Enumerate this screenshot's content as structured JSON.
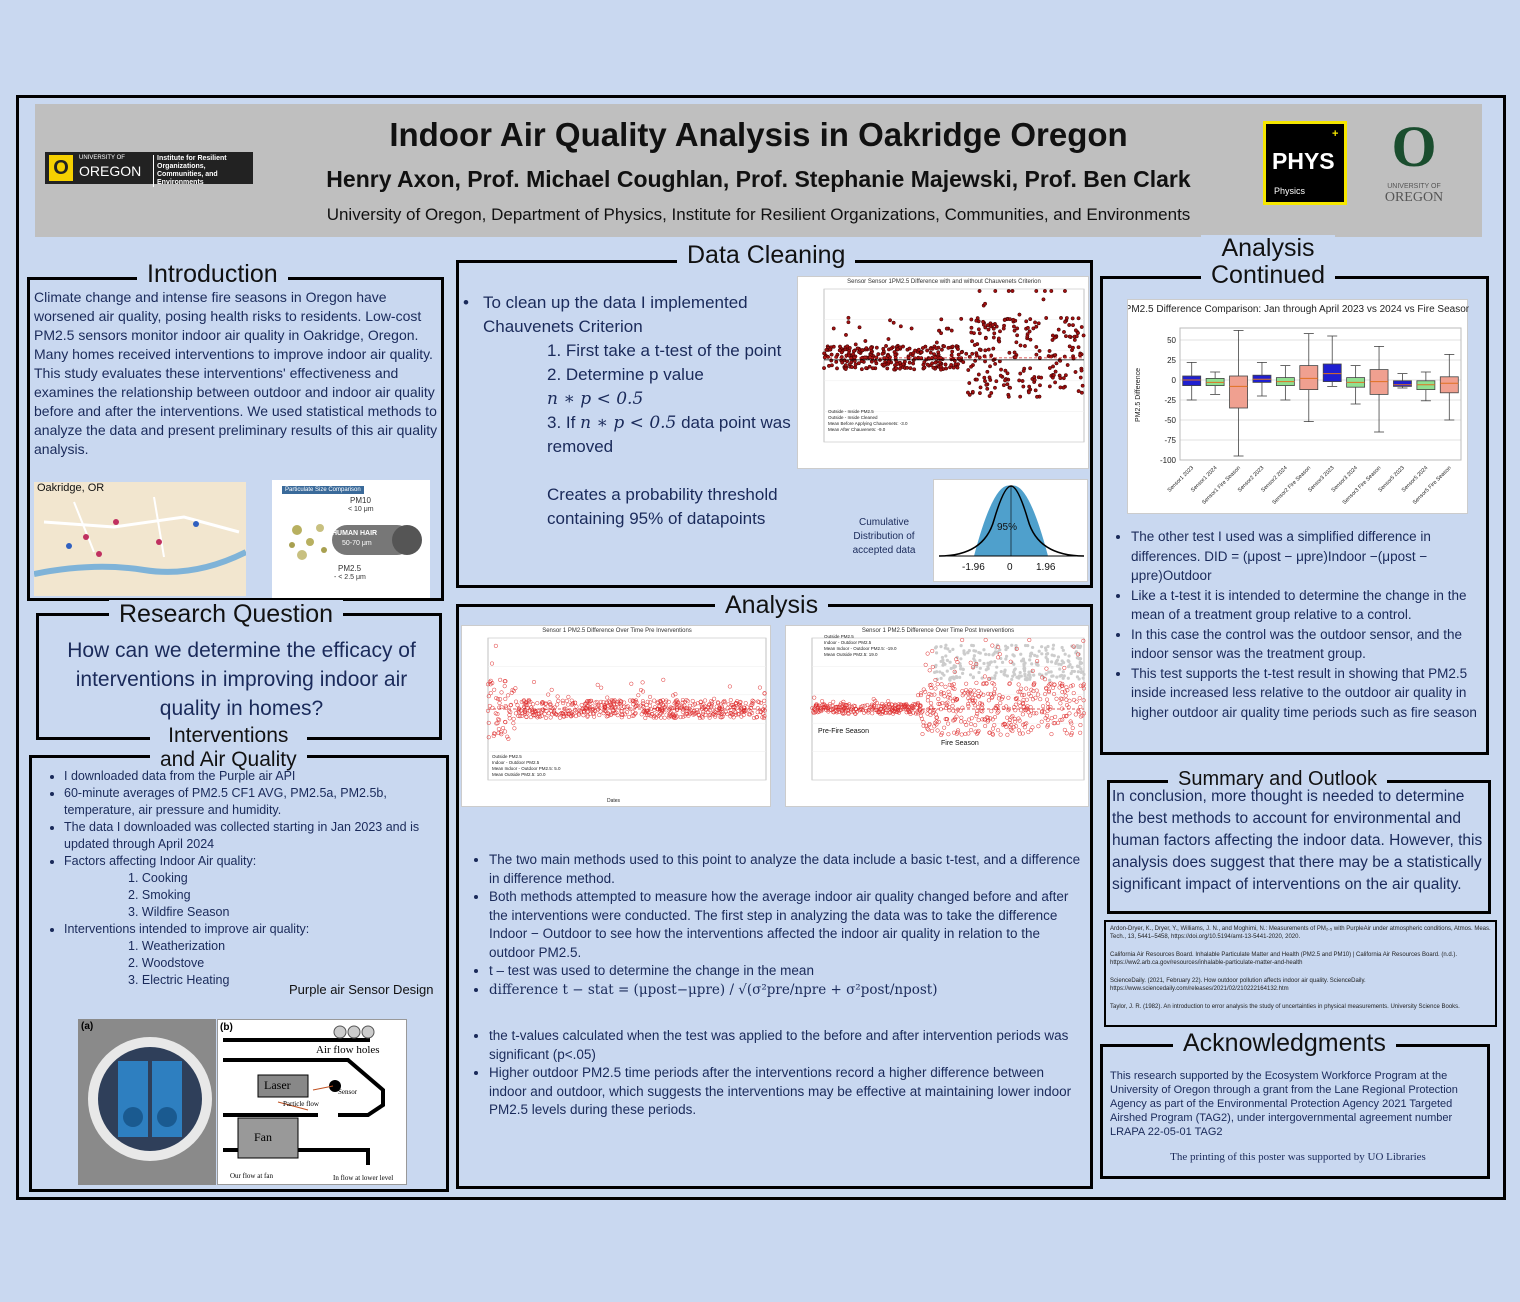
{
  "header": {
    "title": "Indoor Air Quality Analysis in Oakridge Oregon",
    "authors": "Henry Axon, Prof. Michael Coughlan, Prof. Stephanie Majewski,  Prof. Ben Clark",
    "affiliation": "University of Oregon, Department of  Physics,  Institute for Resilient Organizations, Communities, and Environments",
    "uo_logo_left": "OREGON",
    "uo_logo_univ": "UNIVERSITY OF",
    "uo_logo_right": "Institute for Resilient Organizations, Communities, and Environments",
    "phys_label": "PHYS",
    "phys_sub": "Physics",
    "oregon_letter": "O",
    "oregon_univ": "UNIVERSITY OF",
    "oregon_name": "OREGON"
  },
  "introduction": {
    "heading": "Introduction",
    "text": "Climate change and intense fire seasons in Oregon have worsened air quality, posing health risks to residents. Low-cost PM2.5 sensors monitor indoor air quality in Oakridge, Oregon. Many homes received interventions to improve indoor air quality. This study evaluates these interventions' effectiveness and examines the relationship between outdoor and indoor air quality before and after the interventions. We used statistical methods to analyze the data and present preliminary results of this air quality analysis.",
    "map_label": "Oakridge, OR",
    "particle_title": "Particulate Size Comparison",
    "pm10": "PM10",
    "pm10_size": "< 10 μm",
    "hair": "HUMAN HAIR",
    "hair_size": "50-70 μm",
    "pm25": "PM2.5",
    "pm25_size": "- < 2.5 μm"
  },
  "research": {
    "heading": "Research Question",
    "text": "How can we determine the efficacy of interventions in improving indoor air quality in homes?"
  },
  "interventions": {
    "heading1": "Interventions",
    "heading2": "and Air Quality",
    "b1": "I downloaded data from the Purple air API",
    "b2": "60-minute averages of PM2.5 CF1 AVG, PM2.5a, PM2.5b, temperature, air pressure and humidity.",
    "b3": "The data I downloaded was collected starting in Jan 2023 and is updated through April 2024",
    "b4": "Factors affecting Indoor Air quality:",
    "f": [
      "1.     Cooking",
      "2.     Smoking",
      "3.     Wildfire Season"
    ],
    "b5": "Interventions intended to improve air quality:",
    "i": [
      "1.     Weatherization",
      "2.     Woodstove",
      "3.     Electric Heating"
    ],
    "design_label": "Purple air Sensor Design",
    "fig_a": "(a)",
    "fig_b": "(b)",
    "laser": "Laser",
    "fan": "Fan",
    "airflow": "Air flow holes",
    "sensor": "Sensor",
    "particle_flow": "Particle flow",
    "out_fan": "Our flow at fan",
    "in_flow": "In flow at lower level"
  },
  "cleaning": {
    "heading": "Data Cleaning",
    "b1": "To clean up the data I implemented Chauvenets Criterion",
    "s1": "1.   First take a t-test of the point",
    "s2": "2.   Determine p value",
    "m1": "n ∗ p < 0.5",
    "s3a": "3.   If ",
    "s3m": "n ∗ p < 0.5",
    "s3b": " data point was removed",
    "threshold": "Creates a probability threshold containing 95% of datapoints",
    "cum_label": "Cumulative Distribution of accepted data",
    "chart_title": "Sensor Sensor 1PM2.5 Difference with and without Chauvenets Criterion",
    "legend": [
      "Outside - Inside PM2.5",
      "Outside - Inside Cleaned",
      "Mean Before Applying Chauvenets: -3.0",
      "Mean After Chauvenets: -9.0"
    ],
    "normal_pct": "95%",
    "normal_ticks": [
      "-1.96",
      "0",
      "1.96"
    ]
  },
  "analysis": {
    "heading": "Analysis",
    "chart1_title": "Sensor 1 PM2.5 Difference Over Time Pre Inverventions",
    "chart2_title": "Sensor 1 PM2.5 Difference Over Time Post Inverventions",
    "pre_fire": "Pre-Fire Season",
    "fire": "Fire Season",
    "xlabel": "Dates",
    "legend1": [
      "Outside PM2.5",
      "Indoor - Outdoor PM2.5",
      "Mean Indoor - Outdoor PM2.5: 5.0",
      "Mean Outside PM2.5: 10.0"
    ],
    "legend2": [
      "Outside PM2.5",
      "Indoor - Outdoor PM2.5",
      "Mean Indoor - Outdoor PM2.5: -19.0",
      "Mean Outside PM2.5: 19.0"
    ],
    "b1": "The two main methods used to this point to analyze the data include a basic t-test, and a difference in difference method.",
    "b2": "Both methods attempted to measure how the average indoor air quality changed before and after the interventions were conducted. The first step in analyzing the data was to take the difference  Indoor − Outdoor to see how the  interventions affected the indoor air quality in relation to the outdoor PM2.5.",
    "b3": "t – test was used to determine the change in the mean",
    "b4": "difference t − stat = (μpost−μpre) / √(σ²pre/npre + σ²post/npost)",
    "b5": "the t-values calculated when the test was applied to the before and after intervention periods was significant (p<.05)",
    "b6": "Higher outdoor PM2.5 time periods after the interventions record a higher difference between indoor and outdoor, which suggests the interventions may be effective at maintaining lower indoor PM2.5 levels during these periods."
  },
  "continued": {
    "heading1": "Analysis",
    "heading2": "Continued",
    "b1": "The other test I used was  a simplified difference in differences. DID = (μpost − μpre)Indoor −(μpost − μpre)Outdoor",
    "b2": "Like a t-test it is intended to determine the change in the mean of a treatment group relative to a control.",
    "b3": "In this case the control was the outdoor sensor, and the indoor sensor was the treatment group.",
    "b4": "This test supports the t-test result in showing that PM2.5 inside increased less relative to the outdoor air quality in higher outdoor air quality time periods such as fire season"
  },
  "summary": {
    "heading": "Summary and Outlook",
    "text": "In conclusion, more thought is needed to determine the best methods to account for environmental and human factors affecting the indoor data. However, this analysis does suggest that there may be a statistically significant impact of interventions on the air quality."
  },
  "references": {
    "r1": "Ardon-Dryer, K., Dryer, Y., Williams, J. N., and Moghimi, N.: Measurements of PM₂.₅ with PurpleAir under atmospheric conditions, Atmos. Meas. Tech., 13, 5441–5458, https://doi.org/10.5194/amt-13-5441-2020, 2020.",
    "r2": "California Air Resources Board. Inhalable Particulate Matter and Health (PM2.5 and PM10) | California Air Resources Board. (n.d.). https://ww2.arb.ca.gov/resources/inhalable-particulate-matter-and-health",
    "r3": "ScienceDaily. (2021, February 22). How outdoor pollution affects indoor air quality. ScienceDaily. https://www.sciencedaily.com/releases/2021/02/210222164132.htm",
    "r4": "Taylor, J. R. (1982). An introduction to error analysis the study of uncertainties in physical measurements. University Science Books."
  },
  "acknowledgments": {
    "heading": "Acknowledgments",
    "text": "This research supported by the Ecosystem Workforce Program at the University of Oregon through a grant from the Lane Regional Protection Agency as part of the Environmental Protection Agency 2021 Targeted Airshed Program (TAG2), under intergovernmental agreement number LRAPA 22-05-01 TAG2",
    "printing": "The printing of this poster was supported by UO Libraries"
  },
  "chart_data": [
    {
      "type": "box",
      "title": "PM2.5 Difference Comparison: Jan through April 2023 vs 2024 vs Fire Season",
      "ylabel": "PM2.5 Difference",
      "ylim": [
        -100,
        65
      ],
      "yticks": [
        50,
        25,
        0,
        -25,
        -50,
        -75,
        -100
      ],
      "categories": [
        "Sensor1 2023",
        "Sensor1 2024",
        "Sensor1 Fire Season",
        "Sensor2 2023",
        "Sensor2 2024",
        "Sensor2 Fire Season",
        "Sensor3 2023",
        "Sensor3 2024",
        "Sensor3 Fire Season",
        "Sensor5 2023",
        "Sensor5 2024",
        "Sensor5 Fire Season"
      ],
      "series": [
        {
          "min": -25,
          "q1": -7,
          "median": 0,
          "q3": 5,
          "max": 22,
          "color": "#1f1fd0"
        },
        {
          "min": -18,
          "q1": -7,
          "median": -3,
          "q3": 2,
          "max": 10,
          "color": "#90e090"
        },
        {
          "min": -95,
          "q1": -35,
          "median": -8,
          "q3": 5,
          "max": 62,
          "color": "#f0a090"
        },
        {
          "min": -20,
          "q1": -3,
          "median": 1,
          "q3": 6,
          "max": 22,
          "color": "#1f1fd0"
        },
        {
          "min": -25,
          "q1": -7,
          "median": -2,
          "q3": 3,
          "max": 18,
          "color": "#90e090"
        },
        {
          "min": -52,
          "q1": -12,
          "median": 2,
          "q3": 18,
          "max": 58,
          "color": "#f0a090"
        },
        {
          "min": -8,
          "q1": -2,
          "median": 8,
          "q3": 20,
          "max": 55,
          "color": "#1f1fd0"
        },
        {
          "min": -30,
          "q1": -9,
          "median": -3,
          "q3": 3,
          "max": 18,
          "color": "#90e090"
        },
        {
          "min": -65,
          "q1": -18,
          "median": -2,
          "q3": 13,
          "max": 42,
          "color": "#f0a090"
        },
        {
          "min": -10,
          "q1": -8,
          "median": -6,
          "q3": -1,
          "max": 8,
          "color": "#1f1fd0"
        },
        {
          "min": -26,
          "q1": -12,
          "median": -6,
          "q3": -1,
          "max": 10,
          "color": "#90e090"
        },
        {
          "min": -50,
          "q1": -16,
          "median": -4,
          "q3": 4,
          "max": 32,
          "color": "#f0a090"
        }
      ]
    }
  ]
}
